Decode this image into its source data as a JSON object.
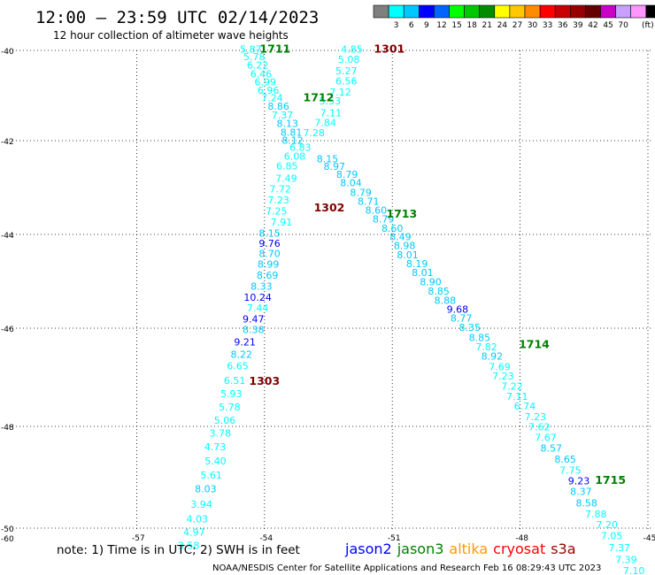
{
  "header": {
    "title": "12:00 – 23:59 UTC 02/14/2023",
    "subtitle": "12 hour collection of altimeter wave heights"
  },
  "colorbar": {
    "colors": [
      "#7f7f7f",
      "#00ffff",
      "#00c8ff",
      "#0000ff",
      "#0064ff",
      "#00ff00",
      "#00c800",
      "#008c00",
      "#ffff00",
      "#ffc800",
      "#ff8c00",
      "#ff0000",
      "#c80000",
      "#960000",
      "#640000",
      "#c800c8",
      "#c8a0ff",
      "#ff96ff",
      "#000000"
    ],
    "labels": [
      "3",
      "6",
      "9",
      "12",
      "15",
      "18",
      "21",
      "24",
      "27",
      "30",
      "33",
      "36",
      "39",
      "42",
      "45",
      "70"
    ],
    "unit": "(ft)"
  },
  "axes": {
    "x_ticks": [
      "-57",
      "-54",
      "-51",
      "-48",
      "-45"
    ],
    "y_ticks": [
      "-40",
      "-42",
      "-44",
      "-46",
      "-48",
      "-50"
    ],
    "corner_label": "-60"
  },
  "time_labels": [
    {
      "text": "1711",
      "lon": -53.75,
      "lat": -39.97,
      "color": "#008000"
    },
    {
      "text": "1301",
      "lon": -51.07,
      "lat": -39.97,
      "color": "#800000"
    },
    {
      "text": "1712",
      "lon": -52.73,
      "lat": -41.05,
      "color": "#008000"
    },
    {
      "text": "1302",
      "lon": -52.48,
      "lat": -43.43,
      "color": "#800000"
    },
    {
      "text": "1713",
      "lon": -50.78,
      "lat": -43.57,
      "color": "#008000"
    },
    {
      "text": "1714",
      "lon": -47.67,
      "lat": -46.33,
      "color": "#008000"
    },
    {
      "text": "1303",
      "lon": -54.0,
      "lat": -47.08,
      "color": "#800000"
    },
    {
      "text": "1715",
      "lon": -45.88,
      "lat": -49.06,
      "color": "#008000"
    }
  ],
  "tracks": [
    {
      "name": "track-ascending",
      "points": [
        {
          "v": "5.87",
          "lon": -54.32,
          "lat": -39.97,
          "color": "#00ffff"
        },
        {
          "v": "5.78",
          "lon": -54.24,
          "lat": -40.14,
          "color": "#00ffff"
        },
        {
          "v": "6.22",
          "lon": -54.16,
          "lat": -40.32,
          "color": "#00ffff"
        },
        {
          "v": "6.46",
          "lon": -54.08,
          "lat": -40.52,
          "color": "#00ffff"
        },
        {
          "v": "6.99",
          "lon": -53.98,
          "lat": -40.7,
          "color": "#00ffff"
        },
        {
          "v": "6.96",
          "lon": -53.91,
          "lat": -40.88,
          "color": "#00ffff"
        },
        {
          "v": "7.24",
          "lon": -53.82,
          "lat": -41.05,
          "color": "#00ffff"
        },
        {
          "v": "8.86",
          "lon": -53.67,
          "lat": -41.24,
          "color": "#00c8ff"
        },
        {
          "v": "7.37",
          "lon": -53.58,
          "lat": -41.43,
          "color": "#00ffff"
        },
        {
          "v": "8.13",
          "lon": -53.46,
          "lat": -41.62,
          "color": "#00c8ff"
        },
        {
          "v": "8.81",
          "lon": -53.37,
          "lat": -41.81,
          "color": "#00c8ff"
        },
        {
          "v": "8.12",
          "lon": -53.34,
          "lat": -41.99,
          "color": "#00c8ff"
        },
        {
          "v": "6.83",
          "lon": -53.16,
          "lat": -42.14,
          "color": "#00ffff"
        },
        {
          "v": "6.08",
          "lon": -53.29,
          "lat": -42.33,
          "color": "#00ffff"
        },
        {
          "v": "6.85",
          "lon": -53.47,
          "lat": -42.54,
          "color": "#00ffff"
        },
        {
          "v": "7.49",
          "lon": -53.49,
          "lat": -42.8,
          "color": "#00ffff"
        },
        {
          "v": "7.72",
          "lon": -53.63,
          "lat": -43.03,
          "color": "#00ffff"
        },
        {
          "v": "7.23",
          "lon": -53.67,
          "lat": -43.26,
          "color": "#00ffff"
        },
        {
          "v": "7.25",
          "lon": -53.72,
          "lat": -43.5,
          "color": "#00ffff"
        },
        {
          "v": "7.91",
          "lon": -53.6,
          "lat": -43.74,
          "color": "#00ffff"
        },
        {
          "v": "8.15",
          "lon": -53.88,
          "lat": -43.97,
          "color": "#00c8ff"
        },
        {
          "v": "9.76",
          "lon": -53.88,
          "lat": -44.19,
          "color": "#0000ff"
        },
        {
          "v": "8.70",
          "lon": -53.88,
          "lat": -44.41,
          "color": "#00c8ff"
        },
        {
          "v": "8.99",
          "lon": -53.91,
          "lat": -44.63,
          "color": "#00c8ff"
        },
        {
          "v": "8.69",
          "lon": -53.93,
          "lat": -44.87,
          "color": "#00c8ff"
        },
        {
          "v": "8.33",
          "lon": -54.07,
          "lat": -45.1,
          "color": "#00c8ff"
        },
        {
          "v": "10.24",
          "lon": -54.16,
          "lat": -45.34,
          "color": "#0000ff"
        },
        {
          "v": "7.44",
          "lon": -54.16,
          "lat": -45.57,
          "color": "#00ffff"
        },
        {
          "v": "9.47",
          "lon": -54.26,
          "lat": -45.8,
          "color": "#0000ff"
        },
        {
          "v": "8.38",
          "lon": -54.26,
          "lat": -46.03,
          "color": "#00c8ff"
        },
        {
          "v": "9.21",
          "lon": -54.46,
          "lat": -46.28,
          "color": "#0000ff"
        },
        {
          "v": "8.22",
          "lon": -54.54,
          "lat": -46.53,
          "color": "#00c8ff"
        },
        {
          "v": "6.65",
          "lon": -54.63,
          "lat": -46.77,
          "color": "#00ffff"
        },
        {
          "v": "6.51",
          "lon": -54.7,
          "lat": -47.06,
          "color": "#00ffff"
        },
        {
          "v": "5.93",
          "lon": -54.78,
          "lat": -47.33,
          "color": "#00ffff"
        },
        {
          "v": "5.78",
          "lon": -54.82,
          "lat": -47.6,
          "color": "#00ffff"
        },
        {
          "v": "5.06",
          "lon": -54.93,
          "lat": -47.87,
          "color": "#00ffff"
        },
        {
          "v": "3.78",
          "lon": -55.04,
          "lat": -48.13,
          "color": "#00ffff"
        },
        {
          "v": "4.73",
          "lon": -55.16,
          "lat": -48.4,
          "color": "#00ffff"
        },
        {
          "v": "5.40",
          "lon": -55.15,
          "lat": -48.68,
          "color": "#00ffff"
        },
        {
          "v": "5.61",
          "lon": -55.25,
          "lat": -48.96,
          "color": "#00ffff"
        },
        {
          "v": "8.03",
          "lon": -55.38,
          "lat": -49.23,
          "color": "#00c8ff"
        },
        {
          "v": "3.94",
          "lon": -55.48,
          "lat": -49.53,
          "color": "#00ffff"
        },
        {
          "v": "4.03",
          "lon": -55.58,
          "lat": -49.82,
          "color": "#00ffff"
        },
        {
          "v": "4.97",
          "lon": -55.65,
          "lat": -50.08,
          "color": "#00ffff"
        },
        {
          "v": "3.58",
          "lon": -55.78,
          "lat": -50.34,
          "color": "#00ffff"
        }
      ]
    },
    {
      "name": "track-descending",
      "points": [
        {
          "v": "4.85",
          "lon": -51.95,
          "lat": -39.97,
          "color": "#00ffff"
        },
        {
          "v": "5.08",
          "lon": -52.02,
          "lat": -40.2,
          "color": "#00ffff"
        },
        {
          "v": "5.27",
          "lon": -52.08,
          "lat": -40.45,
          "color": "#00ffff"
        },
        {
          "v": "6.56",
          "lon": -52.08,
          "lat": -40.68,
          "color": "#00ffff"
        },
        {
          "v": "7.12",
          "lon": -52.22,
          "lat": -40.92,
          "color": "#00ffff"
        },
        {
          "v": "5.53",
          "lon": -52.46,
          "lat": -41.12,
          "color": "#00ffff"
        },
        {
          "v": "7.11",
          "lon": -52.44,
          "lat": -41.38,
          "color": "#00ffff"
        },
        {
          "v": "7.84",
          "lon": -52.57,
          "lat": -41.6,
          "color": "#00ffff"
        },
        {
          "v": "7.28",
          "lon": -52.84,
          "lat": -41.82,
          "color": "#00ffff"
        },
        {
          "v": "8.15",
          "lon": -52.52,
          "lat": -42.39,
          "color": "#00c8ff"
        },
        {
          "v": "8.97",
          "lon": -52.36,
          "lat": -42.55,
          "color": "#00c8ff"
        },
        {
          "v": "8.79",
          "lon": -52.06,
          "lat": -42.72,
          "color": "#00c8ff"
        },
        {
          "v": "8.04",
          "lon": -51.97,
          "lat": -42.9,
          "color": "#00c8ff"
        },
        {
          "v": "8.79",
          "lon": -51.74,
          "lat": -43.1,
          "color": "#00c8ff"
        },
        {
          "v": "8.71",
          "lon": -51.56,
          "lat": -43.29,
          "color": "#00c8ff"
        },
        {
          "v": "8.60",
          "lon": -51.38,
          "lat": -43.48,
          "color": "#00c8ff"
        },
        {
          "v": "8.79",
          "lon": -51.21,
          "lat": -43.67,
          "color": "#00c8ff"
        },
        {
          "v": "8.60",
          "lon": -51.0,
          "lat": -43.87,
          "color": "#00c8ff"
        },
        {
          "v": "8.49",
          "lon": -50.81,
          "lat": -44.05,
          "color": "#00c8ff"
        },
        {
          "v": "8.98",
          "lon": -50.71,
          "lat": -44.24,
          "color": "#00c8ff"
        },
        {
          "v": "8.01",
          "lon": -50.64,
          "lat": -44.43,
          "color": "#00c8ff"
        },
        {
          "v": "8.19",
          "lon": -50.42,
          "lat": -44.62,
          "color": "#00c8ff"
        },
        {
          "v": "8.01",
          "lon": -50.29,
          "lat": -44.81,
          "color": "#00c8ff"
        },
        {
          "v": "8.90",
          "lon": -50.1,
          "lat": -45.01,
          "color": "#00c8ff"
        },
        {
          "v": "8.85",
          "lon": -49.91,
          "lat": -45.21,
          "color": "#00c8ff"
        },
        {
          "v": "8.88",
          "lon": -49.76,
          "lat": -45.41,
          "color": "#00c8ff"
        },
        {
          "v": "9.68",
          "lon": -49.47,
          "lat": -45.59,
          "color": "#0000ff"
        },
        {
          "v": "8.77",
          "lon": -49.38,
          "lat": -45.78,
          "color": "#00c8ff"
        },
        {
          "v": "8.35",
          "lon": -49.18,
          "lat": -45.98,
          "color": "#00c8ff"
        },
        {
          "v": "8.85",
          "lon": -48.95,
          "lat": -46.19,
          "color": "#00c8ff"
        },
        {
          "v": "7.82",
          "lon": -48.79,
          "lat": -46.38,
          "color": "#00ffff"
        },
        {
          "v": "8.92",
          "lon": -48.66,
          "lat": -46.57,
          "color": "#00c8ff"
        },
        {
          "v": "7.69",
          "lon": -48.48,
          "lat": -46.78,
          "color": "#00ffff"
        },
        {
          "v": "7.23",
          "lon": -48.4,
          "lat": -46.97,
          "color": "#00ffff"
        },
        {
          "v": "7.22",
          "lon": -48.19,
          "lat": -47.18,
          "color": "#00ffff"
        },
        {
          "v": "7.11",
          "lon": -48.07,
          "lat": -47.39,
          "color": "#00ffff"
        },
        {
          "v": "6.74",
          "lon": -47.89,
          "lat": -47.59,
          "color": "#00ffff"
        },
        {
          "v": "7.23",
          "lon": -47.64,
          "lat": -47.8,
          "color": "#00ffff"
        },
        {
          "v": "7.62",
          "lon": -47.55,
          "lat": -48.01,
          "color": "#00ffff"
        },
        {
          "v": "7.67",
          "lon": -47.4,
          "lat": -48.22,
          "color": "#00ffff"
        },
        {
          "v": "8.57",
          "lon": -47.27,
          "lat": -48.43,
          "color": "#00c8ff"
        },
        {
          "v": "8.65",
          "lon": -46.94,
          "lat": -48.64,
          "color": "#00c8ff"
        },
        {
          "v": "7.75",
          "lon": -46.82,
          "lat": -48.86,
          "color": "#00ffff"
        },
        {
          "v": "9.23",
          "lon": -46.62,
          "lat": -49.07,
          "color": "#0000ff"
        },
        {
          "v": "8.37",
          "lon": -46.57,
          "lat": -49.28,
          "color": "#00c8ff"
        },
        {
          "v": "8.58",
          "lon": -46.44,
          "lat": -49.5,
          "color": "#00c8ff"
        },
        {
          "v": "7.88",
          "lon": -46.22,
          "lat": -49.72,
          "color": "#00ffff"
        },
        {
          "v": "7.20",
          "lon": -45.96,
          "lat": -49.93,
          "color": "#00ffff"
        },
        {
          "v": "7.05",
          "lon": -45.85,
          "lat": -50.15,
          "color": "#00ffff"
        },
        {
          "v": "7.37",
          "lon": -45.67,
          "lat": -50.38,
          "color": "#00ffff"
        },
        {
          "v": "7.39",
          "lon": -45.51,
          "lat": -50.61,
          "color": "#00ffff"
        },
        {
          "v": "7.10",
          "lon": -45.33,
          "lat": -50.83,
          "color": "#00ffff"
        },
        {
          "v": "7.42",
          "lon": -45.1,
          "lat": -51.06,
          "color": "#00ffff"
        }
      ]
    }
  ],
  "note": "note: 1) Time is in UTC; 2) SWH is in feet",
  "legend": [
    {
      "text": "jason2",
      "color": "#0000ff"
    },
    {
      "text": "jason3",
      "color": "#008000"
    },
    {
      "text": "altika",
      "color": "#ff9900"
    },
    {
      "text": "cryosat",
      "color": "#ff0000"
    },
    {
      "text": "s3a",
      "color": "#990000"
    }
  ],
  "footer": "NOAA/NESDIS Center for Satellite Applications and Research    Feb 16 08:29:43 UTC 2023"
}
